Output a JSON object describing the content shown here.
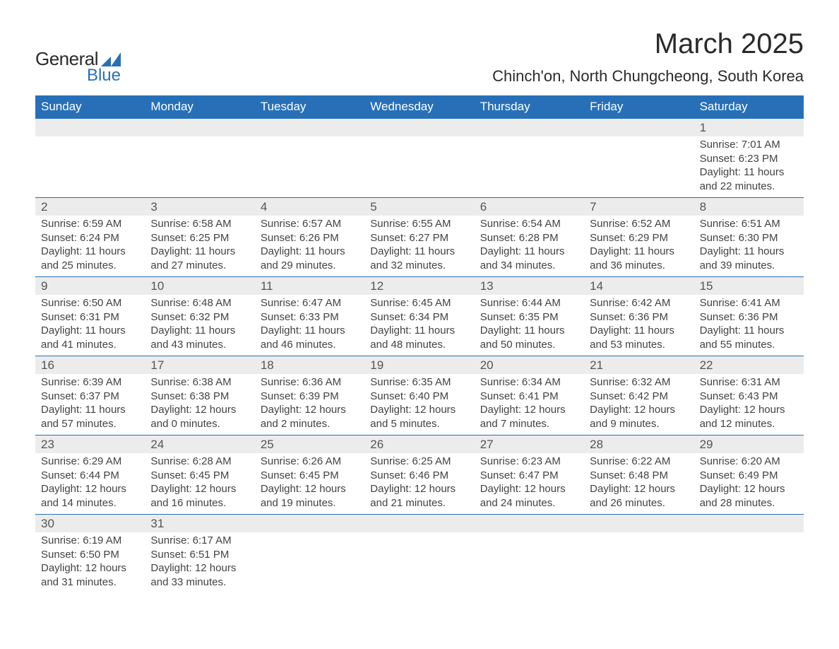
{
  "logo": {
    "line1": "General",
    "line2": "Blue",
    "color_general": "#2a2a2a",
    "color_blue": "#2770b8",
    "shape_color": "#2770b8"
  },
  "title": "March 2025",
  "location": "Chinch'on, North Chungcheong, South Korea",
  "colors": {
    "header_bg": "#2770b8",
    "header_text": "#ffffff",
    "daynum_bg": "#ececec",
    "row_border": "#2770b8",
    "body_text": "#424242",
    "title_text": "#2a2a2a"
  },
  "typography": {
    "title_fontsize": 40,
    "location_fontsize": 22,
    "header_fontsize": 17,
    "daynum_fontsize": 17,
    "detail_fontsize": 15
  },
  "weekdays": [
    "Sunday",
    "Monday",
    "Tuesday",
    "Wednesday",
    "Thursday",
    "Friday",
    "Saturday"
  ],
  "weeks": [
    [
      null,
      null,
      null,
      null,
      null,
      null,
      {
        "day": "1",
        "sunrise": "Sunrise: 7:01 AM",
        "sunset": "Sunset: 6:23 PM",
        "dl1": "Daylight: 11 hours",
        "dl2": "and 22 minutes."
      }
    ],
    [
      {
        "day": "2",
        "sunrise": "Sunrise: 6:59 AM",
        "sunset": "Sunset: 6:24 PM",
        "dl1": "Daylight: 11 hours",
        "dl2": "and 25 minutes."
      },
      {
        "day": "3",
        "sunrise": "Sunrise: 6:58 AM",
        "sunset": "Sunset: 6:25 PM",
        "dl1": "Daylight: 11 hours",
        "dl2": "and 27 minutes."
      },
      {
        "day": "4",
        "sunrise": "Sunrise: 6:57 AM",
        "sunset": "Sunset: 6:26 PM",
        "dl1": "Daylight: 11 hours",
        "dl2": "and 29 minutes."
      },
      {
        "day": "5",
        "sunrise": "Sunrise: 6:55 AM",
        "sunset": "Sunset: 6:27 PM",
        "dl1": "Daylight: 11 hours",
        "dl2": "and 32 minutes."
      },
      {
        "day": "6",
        "sunrise": "Sunrise: 6:54 AM",
        "sunset": "Sunset: 6:28 PM",
        "dl1": "Daylight: 11 hours",
        "dl2": "and 34 minutes."
      },
      {
        "day": "7",
        "sunrise": "Sunrise: 6:52 AM",
        "sunset": "Sunset: 6:29 PM",
        "dl1": "Daylight: 11 hours",
        "dl2": "and 36 minutes."
      },
      {
        "day": "8",
        "sunrise": "Sunrise: 6:51 AM",
        "sunset": "Sunset: 6:30 PM",
        "dl1": "Daylight: 11 hours",
        "dl2": "and 39 minutes."
      }
    ],
    [
      {
        "day": "9",
        "sunrise": "Sunrise: 6:50 AM",
        "sunset": "Sunset: 6:31 PM",
        "dl1": "Daylight: 11 hours",
        "dl2": "and 41 minutes."
      },
      {
        "day": "10",
        "sunrise": "Sunrise: 6:48 AM",
        "sunset": "Sunset: 6:32 PM",
        "dl1": "Daylight: 11 hours",
        "dl2": "and 43 minutes."
      },
      {
        "day": "11",
        "sunrise": "Sunrise: 6:47 AM",
        "sunset": "Sunset: 6:33 PM",
        "dl1": "Daylight: 11 hours",
        "dl2": "and 46 minutes."
      },
      {
        "day": "12",
        "sunrise": "Sunrise: 6:45 AM",
        "sunset": "Sunset: 6:34 PM",
        "dl1": "Daylight: 11 hours",
        "dl2": "and 48 minutes."
      },
      {
        "day": "13",
        "sunrise": "Sunrise: 6:44 AM",
        "sunset": "Sunset: 6:35 PM",
        "dl1": "Daylight: 11 hours",
        "dl2": "and 50 minutes."
      },
      {
        "day": "14",
        "sunrise": "Sunrise: 6:42 AM",
        "sunset": "Sunset: 6:36 PM",
        "dl1": "Daylight: 11 hours",
        "dl2": "and 53 minutes."
      },
      {
        "day": "15",
        "sunrise": "Sunrise: 6:41 AM",
        "sunset": "Sunset: 6:36 PM",
        "dl1": "Daylight: 11 hours",
        "dl2": "and 55 minutes."
      }
    ],
    [
      {
        "day": "16",
        "sunrise": "Sunrise: 6:39 AM",
        "sunset": "Sunset: 6:37 PM",
        "dl1": "Daylight: 11 hours",
        "dl2": "and 57 minutes."
      },
      {
        "day": "17",
        "sunrise": "Sunrise: 6:38 AM",
        "sunset": "Sunset: 6:38 PM",
        "dl1": "Daylight: 12 hours",
        "dl2": "and 0 minutes."
      },
      {
        "day": "18",
        "sunrise": "Sunrise: 6:36 AM",
        "sunset": "Sunset: 6:39 PM",
        "dl1": "Daylight: 12 hours",
        "dl2": "and 2 minutes."
      },
      {
        "day": "19",
        "sunrise": "Sunrise: 6:35 AM",
        "sunset": "Sunset: 6:40 PM",
        "dl1": "Daylight: 12 hours",
        "dl2": "and 5 minutes."
      },
      {
        "day": "20",
        "sunrise": "Sunrise: 6:34 AM",
        "sunset": "Sunset: 6:41 PM",
        "dl1": "Daylight: 12 hours",
        "dl2": "and 7 minutes."
      },
      {
        "day": "21",
        "sunrise": "Sunrise: 6:32 AM",
        "sunset": "Sunset: 6:42 PM",
        "dl1": "Daylight: 12 hours",
        "dl2": "and 9 minutes."
      },
      {
        "day": "22",
        "sunrise": "Sunrise: 6:31 AM",
        "sunset": "Sunset: 6:43 PM",
        "dl1": "Daylight: 12 hours",
        "dl2": "and 12 minutes."
      }
    ],
    [
      {
        "day": "23",
        "sunrise": "Sunrise: 6:29 AM",
        "sunset": "Sunset: 6:44 PM",
        "dl1": "Daylight: 12 hours",
        "dl2": "and 14 minutes."
      },
      {
        "day": "24",
        "sunrise": "Sunrise: 6:28 AM",
        "sunset": "Sunset: 6:45 PM",
        "dl1": "Daylight: 12 hours",
        "dl2": "and 16 minutes."
      },
      {
        "day": "25",
        "sunrise": "Sunrise: 6:26 AM",
        "sunset": "Sunset: 6:45 PM",
        "dl1": "Daylight: 12 hours",
        "dl2": "and 19 minutes."
      },
      {
        "day": "26",
        "sunrise": "Sunrise: 6:25 AM",
        "sunset": "Sunset: 6:46 PM",
        "dl1": "Daylight: 12 hours",
        "dl2": "and 21 minutes."
      },
      {
        "day": "27",
        "sunrise": "Sunrise: 6:23 AM",
        "sunset": "Sunset: 6:47 PM",
        "dl1": "Daylight: 12 hours",
        "dl2": "and 24 minutes."
      },
      {
        "day": "28",
        "sunrise": "Sunrise: 6:22 AM",
        "sunset": "Sunset: 6:48 PM",
        "dl1": "Daylight: 12 hours",
        "dl2": "and 26 minutes."
      },
      {
        "day": "29",
        "sunrise": "Sunrise: 6:20 AM",
        "sunset": "Sunset: 6:49 PM",
        "dl1": "Daylight: 12 hours",
        "dl2": "and 28 minutes."
      }
    ],
    [
      {
        "day": "30",
        "sunrise": "Sunrise: 6:19 AM",
        "sunset": "Sunset: 6:50 PM",
        "dl1": "Daylight: 12 hours",
        "dl2": "and 31 minutes."
      },
      {
        "day": "31",
        "sunrise": "Sunrise: 6:17 AM",
        "sunset": "Sunset: 6:51 PM",
        "dl1": "Daylight: 12 hours",
        "dl2": "and 33 minutes."
      },
      null,
      null,
      null,
      null,
      null
    ]
  ]
}
